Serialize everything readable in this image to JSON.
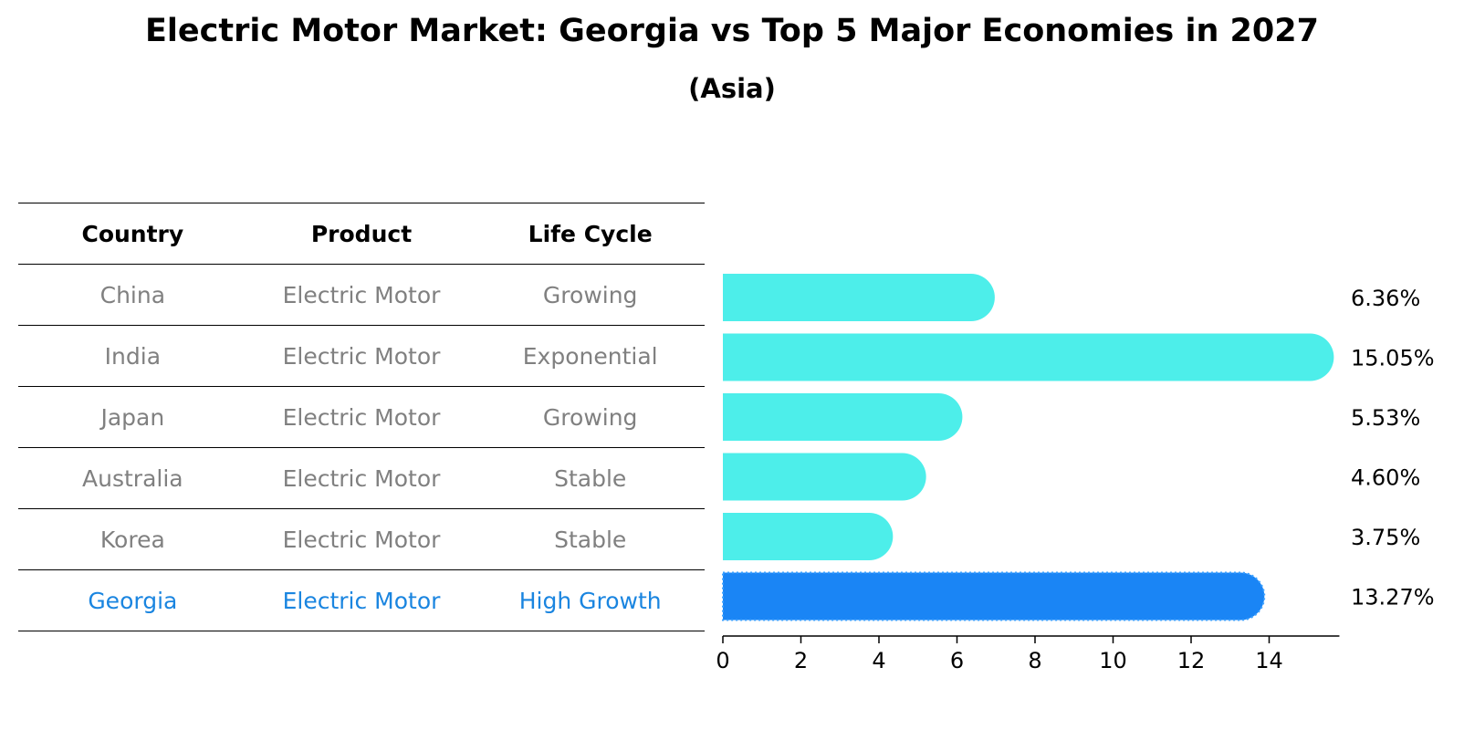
{
  "title": "Electric Motor Market: Georgia vs Top 5 Major Economies in 2027",
  "subtitle": "(Asia)",
  "table": {
    "headers": [
      "Country",
      "Product",
      "Life Cycle"
    ],
    "rows": [
      [
        "China",
        "Electric Motor",
        "Growing"
      ],
      [
        "India",
        "Electric Motor",
        "Exponential"
      ],
      [
        "Japan",
        "Electric Motor",
        "Growing"
      ],
      [
        "Australia",
        "Electric Motor",
        "Stable"
      ],
      [
        "Korea",
        "Electric Motor",
        "Stable"
      ],
      [
        "Georgia",
        "Electric Motor",
        "High Growth"
      ]
    ],
    "highlight_row": "Georgia"
  },
  "colors": {
    "bar": "#4deeea",
    "highlight": "#1a85f5",
    "highlight_text": "#1a85e0",
    "muted_text": "#808080"
  },
  "chart_data": {
    "type": "bar",
    "orientation": "horizontal",
    "categories": [
      "China",
      "India",
      "Japan",
      "Australia",
      "Korea",
      "Georgia"
    ],
    "values": [
      6.36,
      15.05,
      5.53,
      4.6,
      3.75,
      13.27
    ],
    "value_labels": [
      "6.36%",
      "15.05%",
      "5.53%",
      "4.60%",
      "3.75%",
      "13.27%"
    ],
    "xticks": [
      0,
      2,
      4,
      6,
      8,
      10,
      12,
      14
    ],
    "xlim": [
      0,
      15.8
    ],
    "highlight": "Georgia",
    "grid": false
  }
}
